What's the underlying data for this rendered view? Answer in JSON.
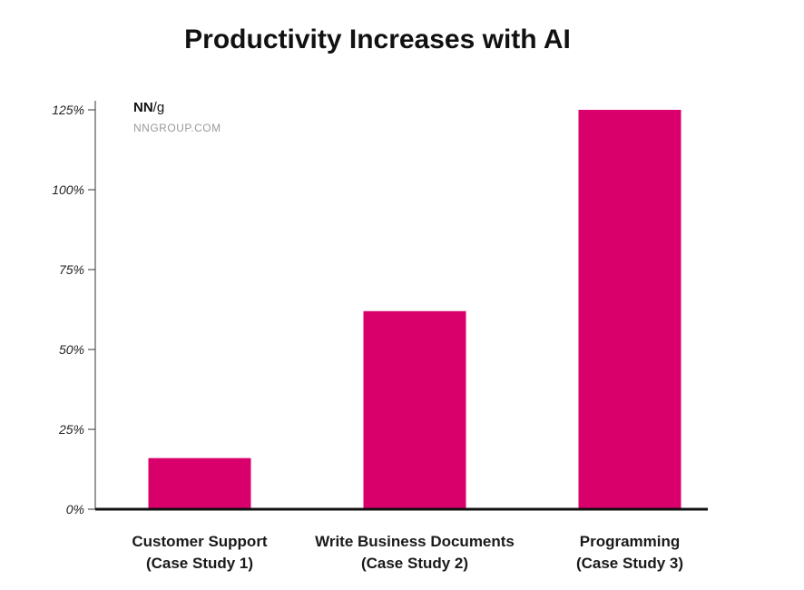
{
  "brand": {
    "logo_strong": "NN",
    "logo_rest": "/g",
    "url": "NNGROUP.COM"
  },
  "colors": {
    "bar": "#d9006c",
    "axis": "#111111",
    "tick": "#333333",
    "background": "#ffffff"
  },
  "chart_data": {
    "type": "bar",
    "title": "Productivity Increases with AI",
    "xlabel": "",
    "ylabel": "",
    "categories": [
      [
        "Customer Support",
        "(Case Study 1)"
      ],
      [
        "Write Business Documents",
        "(Case Study 2)"
      ],
      [
        "Programming",
        "(Case Study 3)"
      ]
    ],
    "values": [
      16,
      62,
      125
    ],
    "unit": "%",
    "ylim": [
      0,
      125
    ],
    "yticks": [
      0,
      25,
      50,
      75,
      100,
      125
    ],
    "ytick_labels": [
      "0%",
      "25%",
      "50%",
      "75%",
      "100%",
      "125%"
    ],
    "grid": false,
    "legend": "none"
  }
}
